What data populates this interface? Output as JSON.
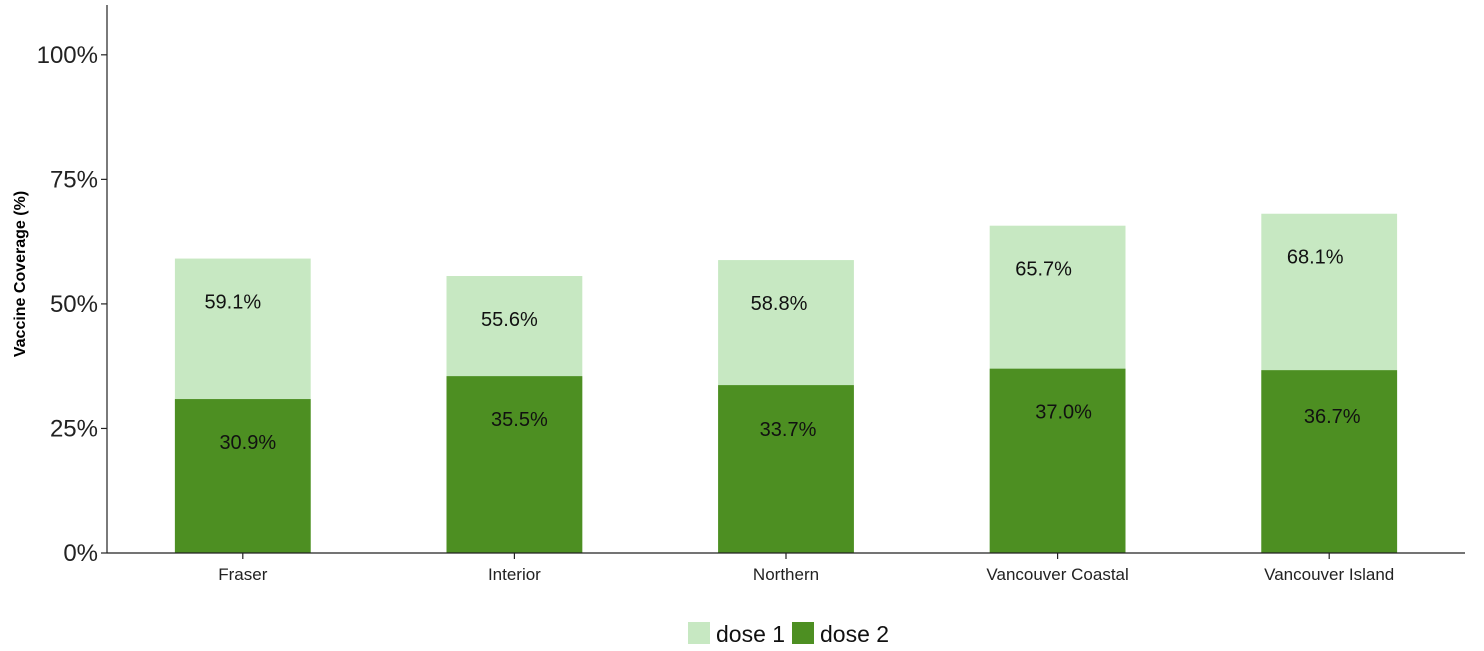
{
  "chart_data": {
    "type": "bar",
    "layout": "overlapping",
    "categories": [
      "Fraser",
      "Interior",
      "Northern",
      "Vancouver Coastal",
      "Vancouver Island"
    ],
    "series": [
      {
        "name": "dose 1",
        "color": "#c7e8c2",
        "values": [
          59.1,
          55.6,
          58.8,
          65.7,
          68.1
        ],
        "labels": [
          "59.1%",
          "55.6%",
          "58.8%",
          "65.7%",
          "68.1%"
        ]
      },
      {
        "name": "dose 2",
        "color": "#4d8f22",
        "values": [
          30.9,
          35.5,
          33.7,
          37.0,
          36.7
        ],
        "labels": [
          "30.9%",
          "35.5%",
          "33.7%",
          "37.0%",
          "36.7%"
        ]
      }
    ],
    "ylabel": "Vaccine Coverage (%)",
    "xlabel": "",
    "title": "",
    "ylim": [
      0,
      110
    ],
    "yticks": [
      0,
      25,
      50,
      75,
      100
    ],
    "ytick_labels": [
      "0%",
      "25%",
      "50%",
      "75%",
      "100%"
    ],
    "grid": false,
    "legend_position": "bottom"
  }
}
